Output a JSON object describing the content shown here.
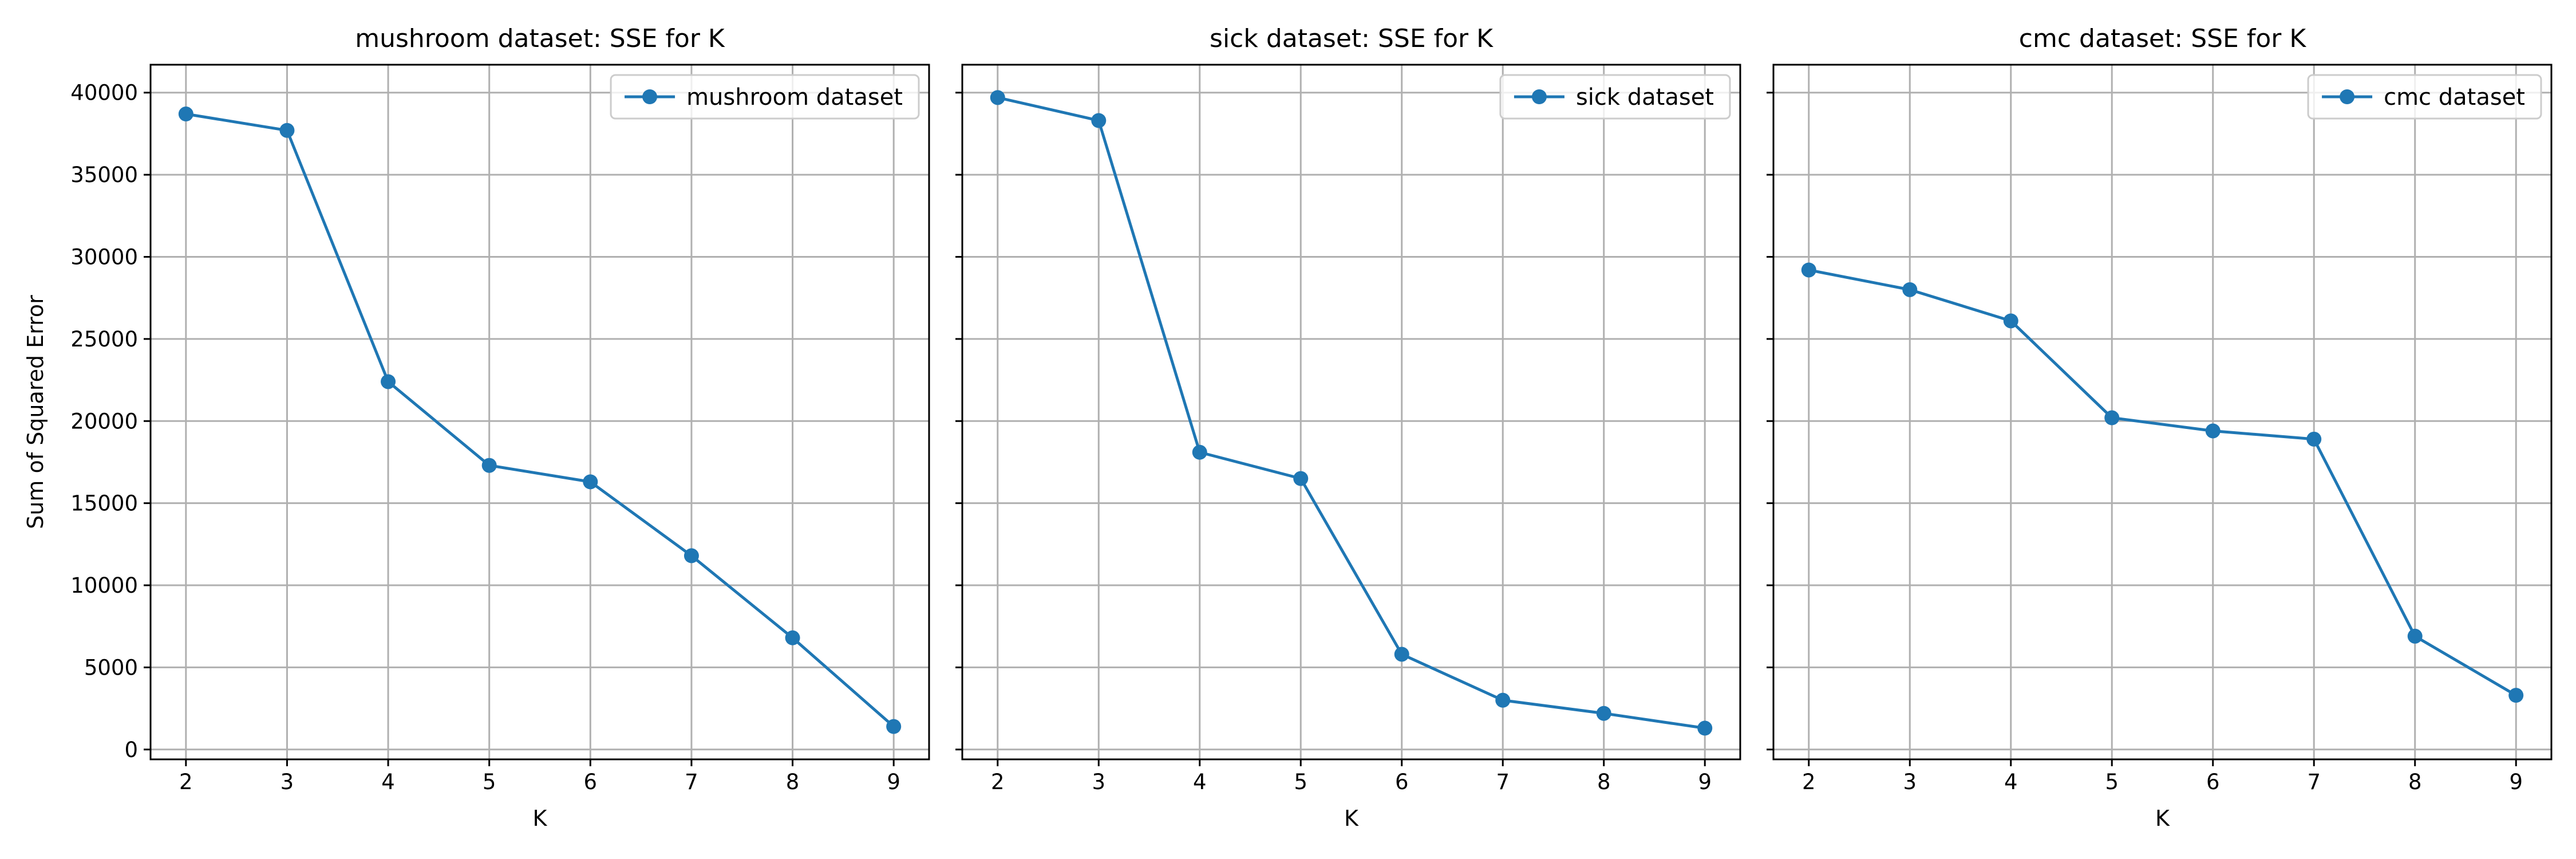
{
  "chart_data": [
    {
      "type": "line",
      "title": "mushroom dataset: SSE for K",
      "xlabel": "K",
      "ylabel": "Sum of Squared Error",
      "x": [
        2,
        3,
        4,
        5,
        6,
        7,
        8,
        9
      ],
      "xticks": [
        "2",
        "3",
        "4",
        "5",
        "6",
        "7",
        "8",
        "9"
      ],
      "yticks": [
        "0",
        "5000",
        "10000",
        "15000",
        "20000",
        "25000",
        "30000",
        "35000",
        "40000"
      ],
      "ylim": [
        -600,
        41700
      ],
      "xlim": [
        1.65,
        9.35
      ],
      "grid": true,
      "legend_position": "top-right",
      "series": [
        {
          "name": "mushroom dataset",
          "color": "#1f77b4",
          "marker": "circle",
          "values": [
            38700,
            37700,
            22400,
            17300,
            16300,
            11800,
            6800,
            1400
          ]
        }
      ]
    },
    {
      "type": "line",
      "title": "sick dataset: SSE for K",
      "xlabel": "K",
      "ylabel": "",
      "x": [
        2,
        3,
        4,
        5,
        6,
        7,
        8,
        9
      ],
      "xticks": [
        "2",
        "3",
        "4",
        "5",
        "6",
        "7",
        "8",
        "9"
      ],
      "yticks": [],
      "ylim": [
        -600,
        41700
      ],
      "xlim": [
        1.65,
        9.35
      ],
      "grid": true,
      "legend_position": "top-right",
      "series": [
        {
          "name": "sick dataset",
          "color": "#1f77b4",
          "marker": "circle",
          "values": [
            39700,
            38300,
            18100,
            16500,
            5800,
            3000,
            2200,
            1300
          ]
        }
      ]
    },
    {
      "type": "line",
      "title": "cmc dataset: SSE for K",
      "xlabel": "K",
      "ylabel": "",
      "x": [
        2,
        3,
        4,
        5,
        6,
        7,
        8,
        9
      ],
      "xticks": [
        "2",
        "3",
        "4",
        "5",
        "6",
        "7",
        "8",
        "9"
      ],
      "yticks": [],
      "ylim": [
        -600,
        41700
      ],
      "xlim": [
        1.65,
        9.35
      ],
      "grid": true,
      "legend_position": "top-right",
      "series": [
        {
          "name": "cmc dataset",
          "color": "#1f77b4",
          "marker": "circle",
          "values": [
            29200,
            28000,
            26100,
            20200,
            19400,
            18900,
            6900,
            3300
          ]
        }
      ]
    }
  ]
}
